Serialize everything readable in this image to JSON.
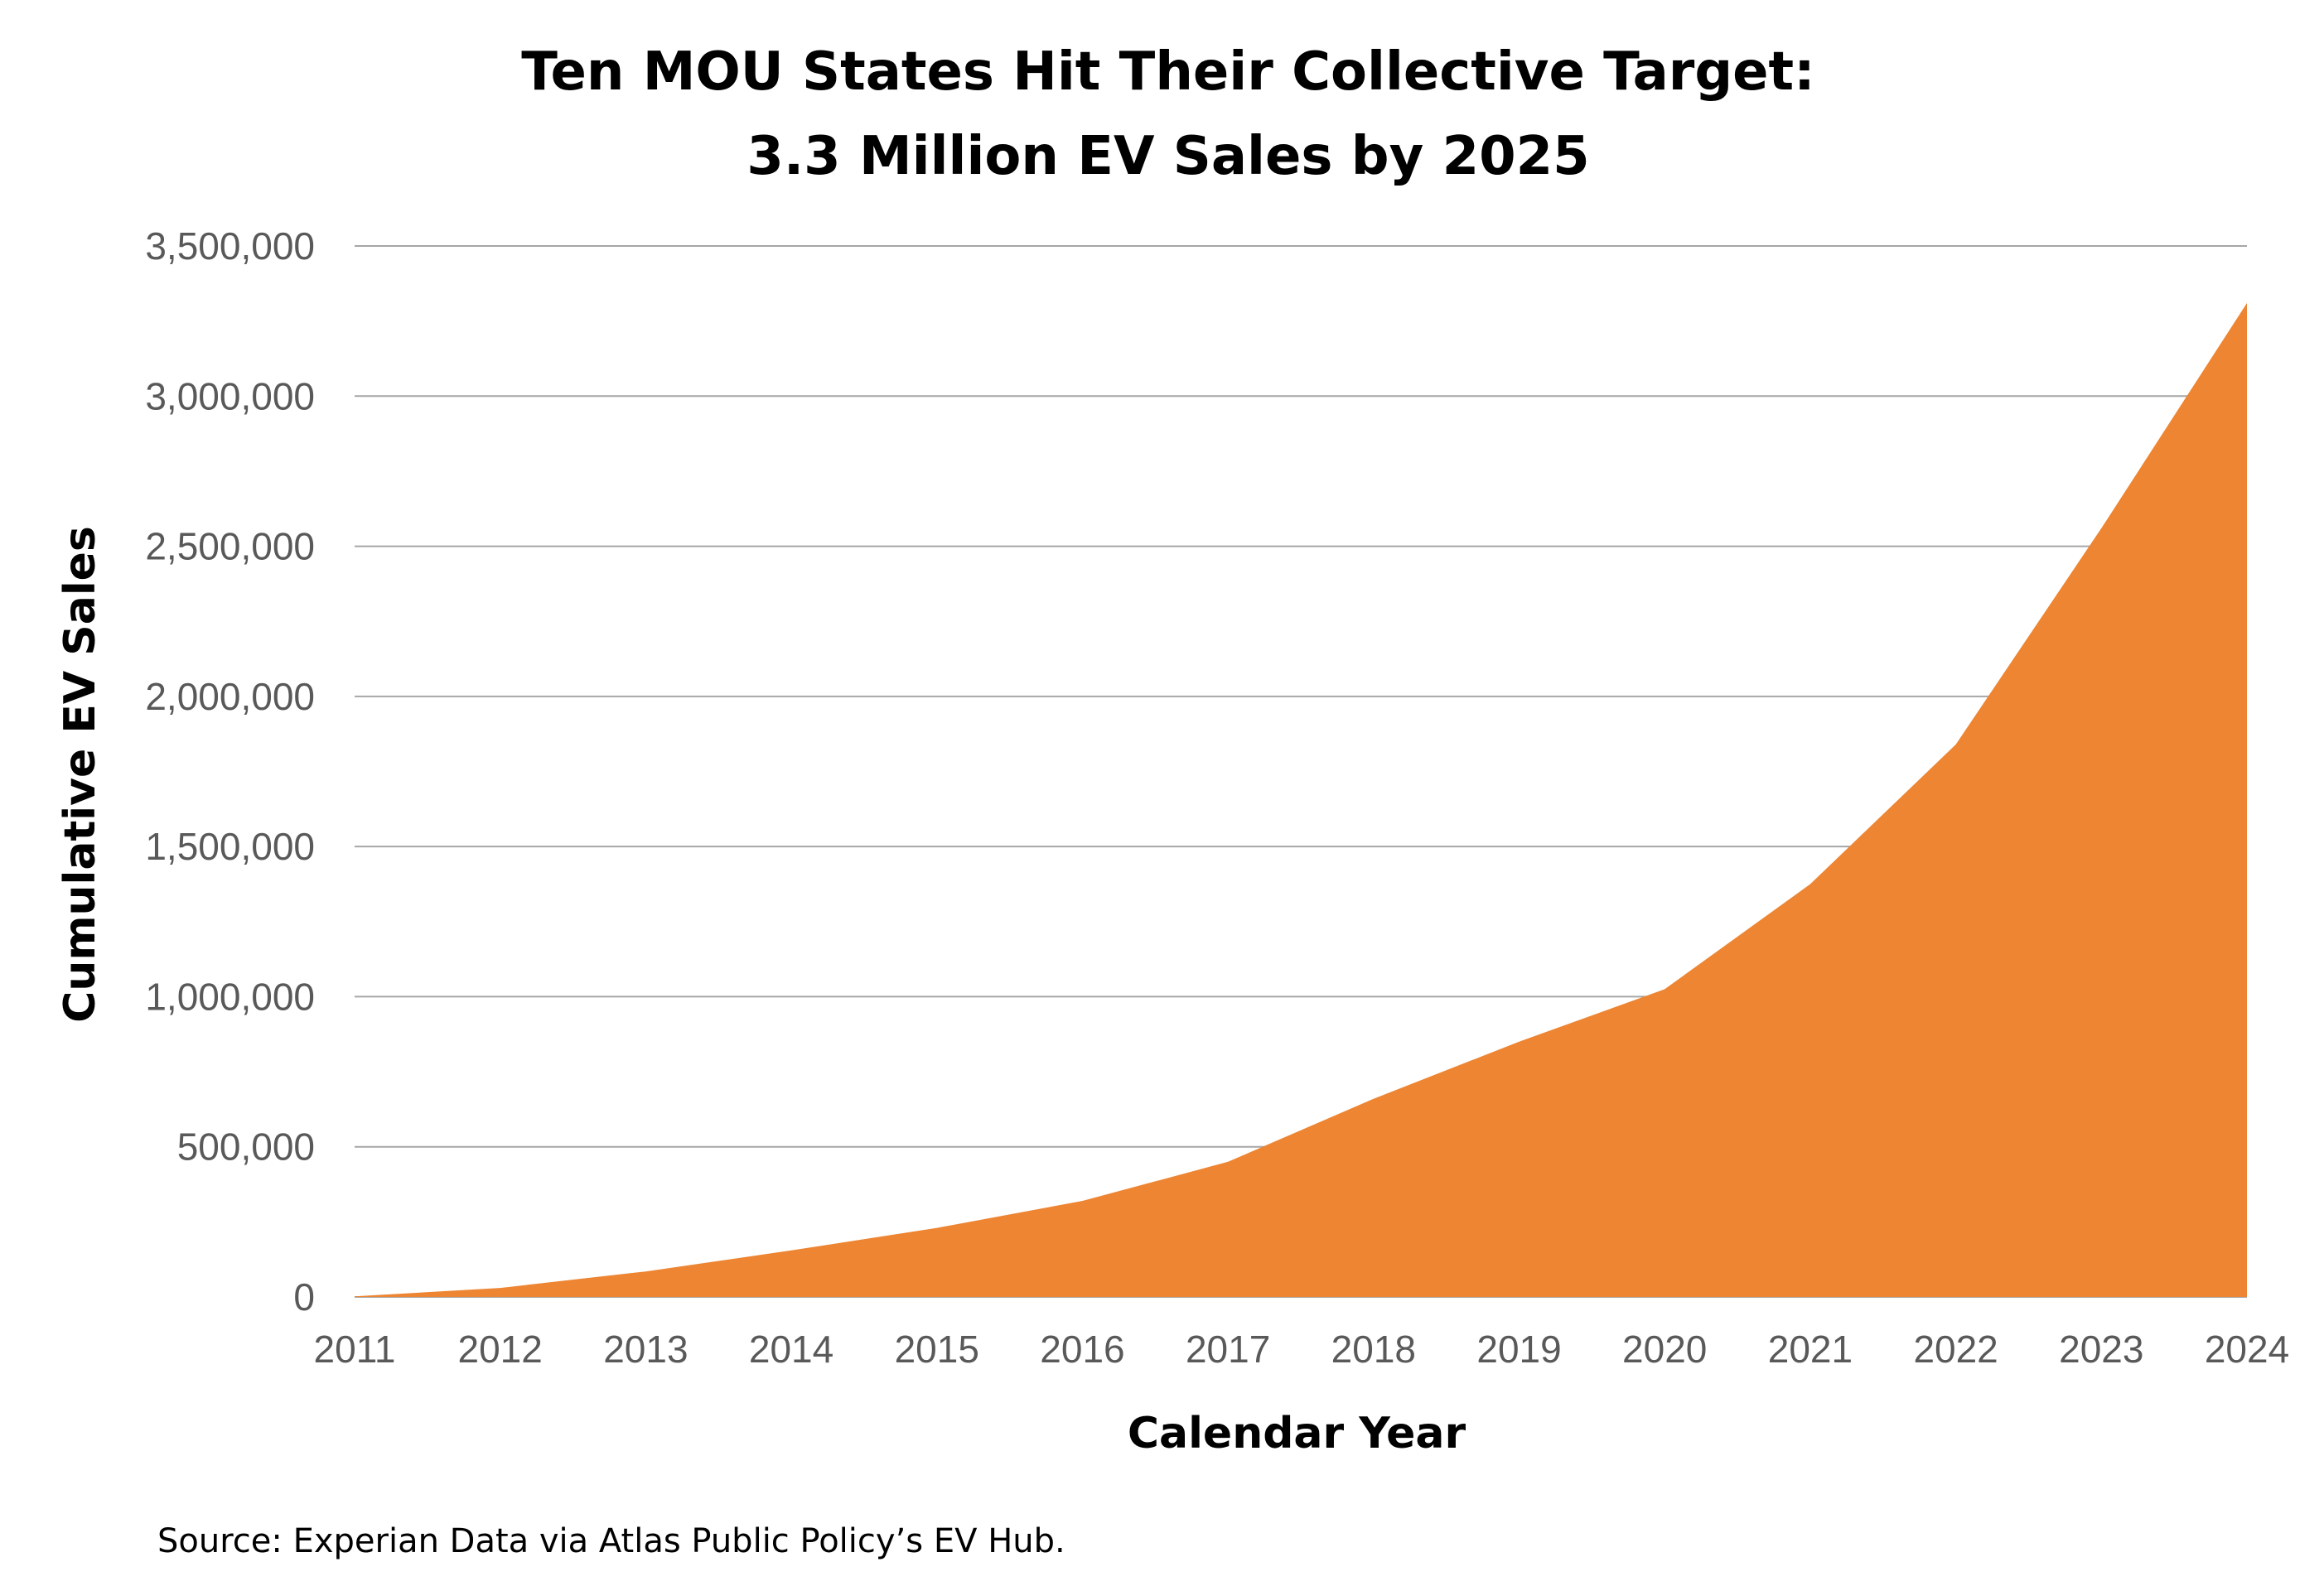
{
  "chart_data": {
    "type": "area",
    "title_lines": [
      "Ten MOU States Hit Their Collective Target:",
      "3.3 Million EV Sales by 2025"
    ],
    "xlabel": "Calendar Year",
    "ylabel": "Cumulative EV Sales",
    "x": [
      "2011",
      "2012",
      "2013",
      "2014",
      "2015",
      "2016",
      "2017",
      "2018",
      "2019",
      "2020",
      "2021",
      "2022",
      "2023",
      "2024"
    ],
    "series": [
      {
        "values": [
          2000,
          30000,
          85000,
          155000,
          230000,
          320000,
          450000,
          660000,
          850000,
          1025000,
          1375000,
          1840000,
          2560000,
          3310000
        ],
        "color": "#ed8532"
      }
    ],
    "ylim": [
      0,
      3500000
    ],
    "yticks": [
      0,
      500000,
      1000000,
      1500000,
      2000000,
      2500000,
      3000000,
      3500000
    ],
    "ytick_labels": [
      "0",
      "500,000",
      "1,000,000",
      "1,500,000",
      "2,000,000",
      "2,500,000",
      "3,000,000",
      "3,500,000"
    ],
    "grid": true,
    "legend": "none",
    "source": "Source: Experian Data via Atlas Public Policy’s EV Hub."
  }
}
